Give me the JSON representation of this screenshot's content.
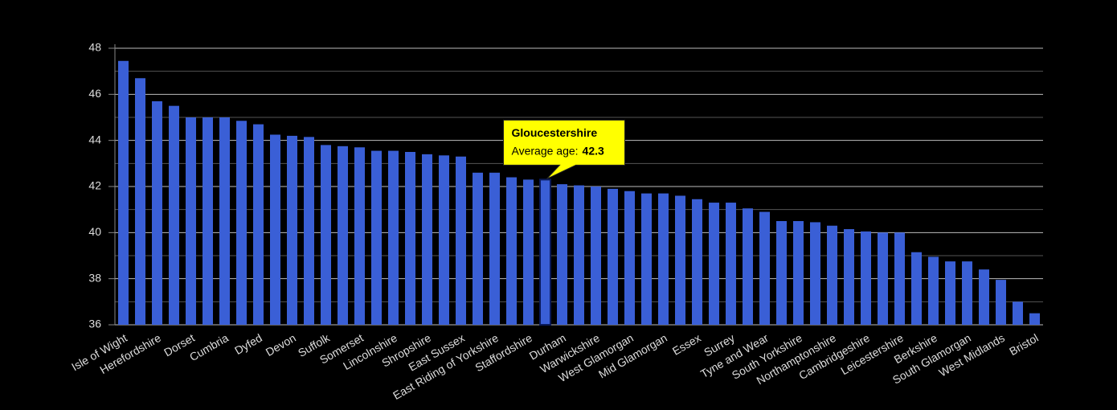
{
  "chart_data": {
    "type": "bar",
    "categories": [
      "Isle of Wight",
      null,
      "Herefordshire",
      null,
      "Dorset",
      null,
      "Cumbria",
      null,
      "Dyfed",
      null,
      "Devon",
      null,
      "Suffolk",
      null,
      "Somerset",
      null,
      "Lincolnshire",
      null,
      "Shropshire",
      null,
      "East Sussex",
      null,
      "East Riding of Yorkshire",
      null,
      "Staffordshire",
      "Gloucestershire",
      "Durham",
      null,
      "Warwickshire",
      null,
      "West Glamorgan",
      null,
      "Mid Glamorgan",
      null,
      "Essex",
      null,
      "Surrey",
      null,
      "Tyne and Wear",
      null,
      "South Yorkshire",
      null,
      "Northamptonshire",
      null,
      "Cambridgeshire",
      null,
      "Leicestershire",
      null,
      "Berkshire",
      null,
      "South Glamorgan",
      null,
      "West Midlands",
      null,
      "Bristol"
    ],
    "values": [
      47.45,
      46.7,
      45.7,
      45.5,
      45.0,
      45.0,
      45.0,
      44.85,
      44.7,
      44.25,
      44.2,
      44.15,
      43.8,
      43.75,
      43.7,
      43.55,
      43.55,
      43.5,
      43.4,
      43.35,
      43.3,
      42.6,
      42.6,
      42.4,
      42.3,
      42.3,
      42.1,
      42.05,
      42.0,
      41.9,
      41.8,
      41.7,
      41.7,
      41.6,
      41.45,
      41.3,
      41.3,
      41.05,
      40.9,
      40.5,
      40.5,
      40.45,
      40.3,
      40.15,
      40.05,
      40.0,
      40.0,
      39.15,
      38.95,
      38.75,
      38.75,
      38.4,
      37.95,
      37.0,
      36.5
    ],
    "color": "#3a5fd6",
    "ylim": [
      36,
      48
    ],
    "yticks": [
      36,
      38,
      40,
      42,
      44,
      46,
      48
    ],
    "yminorticks": [
      37,
      39,
      41,
      43,
      45,
      47
    ],
    "grid": true,
    "highlight": 25,
    "tooltip": {
      "label": "Average age:"
    }
  }
}
